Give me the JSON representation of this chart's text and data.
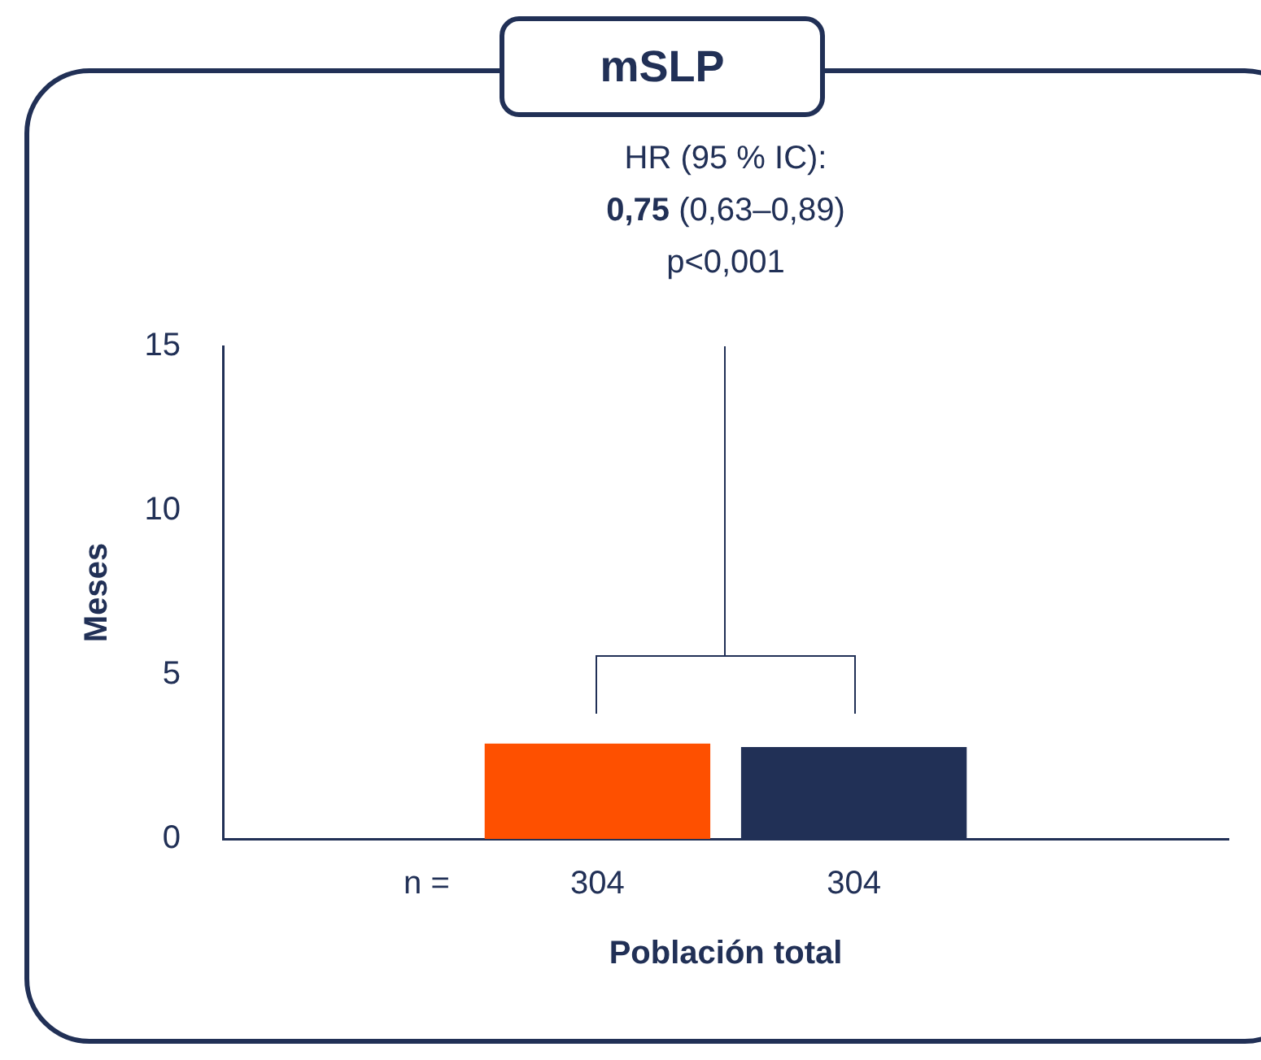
{
  "chart_data": {
    "type": "bar",
    "title": "mSLP",
    "xlabel": "Población total",
    "ylabel": "Meses",
    "categories": [
      null
    ],
    "series": [
      {
        "color": "#fe5000",
        "values": [
          2.9
        ]
      },
      {
        "color": "#213056",
        "values": [
          2.8
        ]
      }
    ],
    "ylim": [
      0,
      15
    ],
    "yticks": [
      0,
      5,
      10,
      15
    ],
    "grid": false,
    "legend": false,
    "annotations": [
      "HR (95 % IC):",
      "0,75 (0,63–0,89)",
      "p<0,001",
      "n =",
      "304",
      "304"
    ]
  }
}
